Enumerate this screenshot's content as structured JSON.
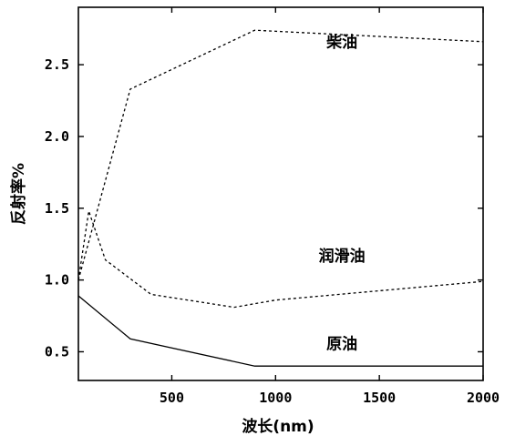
{
  "chart_data": {
    "type": "line",
    "xlabel": "波长(nm)",
    "ylabel": "反射率%",
    "xlim": [
      50,
      2000
    ],
    "ylim": [
      0.3,
      2.9
    ],
    "xticks": [
      500,
      1000,
      1500,
      2000
    ],
    "yticks": [
      0.5,
      1.0,
      1.5,
      2.0,
      2.5
    ],
    "ytick_labels": [
      "0.5",
      "1.0",
      "1.5",
      "2.0",
      "2.5"
    ],
    "series": [
      {
        "name": "柴油",
        "style": "dashed",
        "color": "#000000",
        "x": [
          50,
          300,
          900,
          2000
        ],
        "y": [
          1.0,
          2.33,
          2.74,
          2.66
        ]
      },
      {
        "name": "润滑油",
        "style": "dashed",
        "color": "#000000",
        "x": [
          50,
          100,
          180,
          400,
          800,
          1000,
          2000
        ],
        "y": [
          1.0,
          1.48,
          1.14,
          0.9,
          0.81,
          0.86,
          0.99
        ]
      },
      {
        "name": "原油",
        "style": "solid",
        "color": "#000000",
        "x": [
          50,
          300,
          900,
          2000
        ],
        "y": [
          0.89,
          0.59,
          0.4,
          0.4
        ]
      }
    ]
  }
}
